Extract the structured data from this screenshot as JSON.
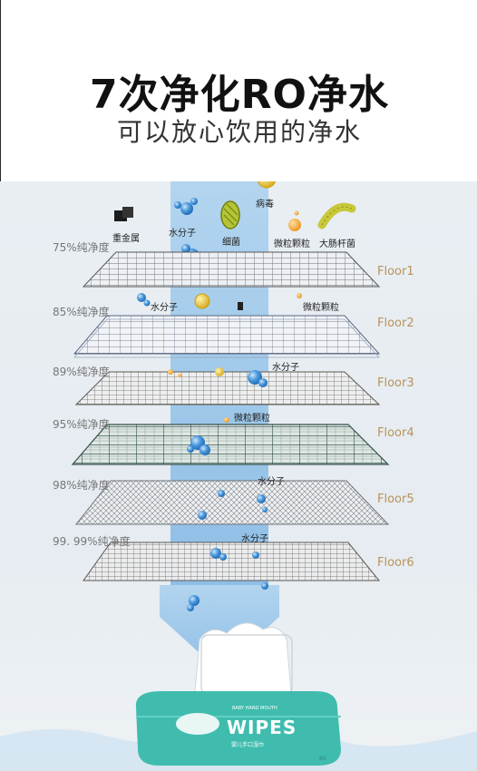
{
  "header": {
    "title": "7次净化RO净水",
    "subtitle": "可以放心饮用的净水"
  },
  "contaminants_top": [
    {
      "name": "heavy-metal",
      "label": "重金属"
    },
    {
      "name": "water-molecule",
      "label": "水分子"
    },
    {
      "name": "bacteria",
      "label": "细菌"
    },
    {
      "name": "virus",
      "label": "病毒"
    },
    {
      "name": "particle",
      "label": "微粒颗粒"
    },
    {
      "name": "ecoli",
      "label": "大肠杆菌"
    }
  ],
  "layers": [
    {
      "purity": "75%纯净度",
      "floor": "Floor1"
    },
    {
      "purity": "85%纯净度",
      "floor": "Floor2"
    },
    {
      "purity": "89%纯净度",
      "floor": "Floor3"
    },
    {
      "purity": "95%纯净度",
      "floor": "Floor4"
    },
    {
      "purity": "98%纯净度",
      "floor": "Floor5"
    },
    {
      "purity": "99. 99%纯净度",
      "floor": "Floor6"
    }
  ],
  "layer_labels": {
    "l2_water": "水分子",
    "l2_particle": "微粒颗粒",
    "l3_water": "水分子",
    "l4_particle": "微粒颗粒",
    "l5_water": "水分子",
    "l6_water": "水分子"
  },
  "package": {
    "brand": "WIPES",
    "small_text": "BABY HAND MOUTH",
    "sub_label": "婴儿手口湿巾",
    "count": "80"
  },
  "colors": {
    "accent_gold": "#b8935a",
    "water_blue": "#3d8fd6",
    "package_teal": "#3fbcae"
  }
}
